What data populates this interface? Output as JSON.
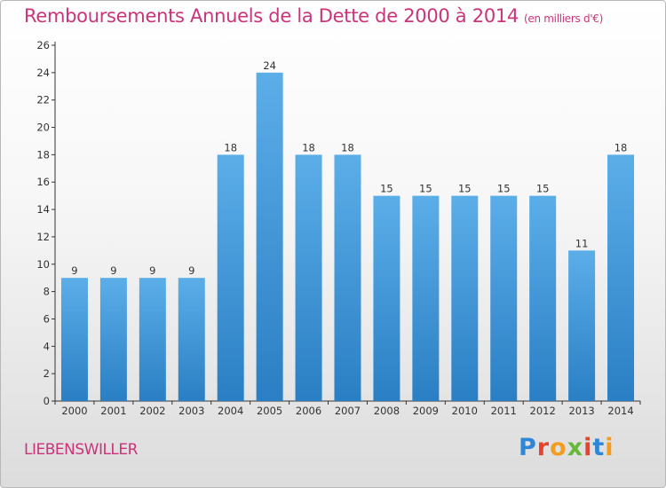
{
  "chart_data": {
    "type": "bar",
    "title": "Remboursements Annuels de la Dette de 2000 à 2014",
    "unit_note": "(en milliers d'€)",
    "categories": [
      "2000",
      "2001",
      "2002",
      "2003",
      "2004",
      "2005",
      "2006",
      "2007",
      "2008",
      "2009",
      "2010",
      "2011",
      "2012",
      "2013",
      "2014"
    ],
    "values": [
      9,
      9,
      9,
      9,
      18,
      24,
      18,
      18,
      15,
      15,
      15,
      15,
      15,
      11,
      18
    ],
    "value_labels": [
      "9",
      "9",
      "9",
      "9",
      "18",
      "24",
      "18",
      "18",
      "15",
      "15",
      "15",
      "15",
      "15",
      "11",
      "18"
    ],
    "ylim": [
      0,
      26
    ],
    "yticks": [
      0,
      2,
      4,
      6,
      8,
      10,
      12,
      14,
      16,
      18,
      20,
      22,
      24,
      26
    ],
    "xlabel": "",
    "ylabel": "",
    "grid": false,
    "legend": "none",
    "bar_color_top": "#5baee8",
    "bar_color_bottom": "#2a7fc4"
  },
  "footer": {
    "town": "LIEBENSWILLER",
    "brand": "Proxiti"
  },
  "colors": {
    "title": "#c9347a",
    "axis": "#333333",
    "brand_letters": [
      "#2e86d6",
      "#e8422c",
      "#f39c1e",
      "#66b838",
      "#e8422c",
      "#2e86d6",
      "#f39c1e"
    ]
  }
}
